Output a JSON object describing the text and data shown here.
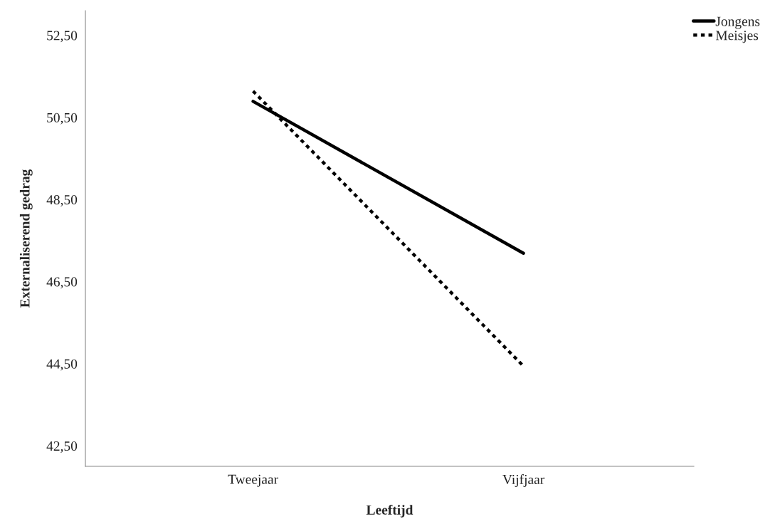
{
  "chart_data": {
    "type": "line",
    "xlabel": "Leeftijd",
    "ylabel": "Externaliserend gedrag",
    "categories": [
      "Tweejaar",
      "Vijfjaar"
    ],
    "series": [
      {
        "name": "Jongens",
        "color": "#000000",
        "values": [
          50.89,
          47.19
        ],
        "line_style": "solid"
      },
      {
        "name": "Meisjes",
        "color": "#000000",
        "values": [
          51.14,
          44.44
        ],
        "line_style": "dotted"
      }
    ],
    "ylim": [
      42.0,
      53.1
    ],
    "yticks": [
      {
        "value": 42.5,
        "label": "42,50"
      },
      {
        "value": 44.5,
        "label": "44,50"
      },
      {
        "value": 46.5,
        "label": "46,50"
      },
      {
        "value": 48.5,
        "label": "48,50"
      },
      {
        "value": 50.5,
        "label": "50,50"
      },
      {
        "value": 52.5,
        "label": "52,50"
      }
    ],
    "grid": false,
    "legend": "top right",
    "marker": "none"
  }
}
